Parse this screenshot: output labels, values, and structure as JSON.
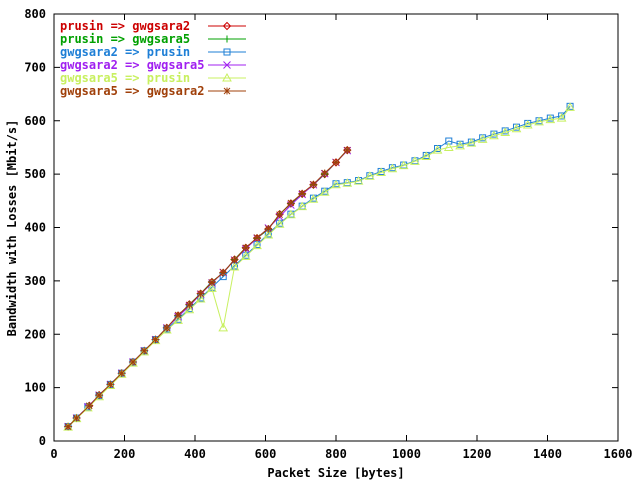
{
  "chart_data": {
    "type": "line",
    "title": "",
    "xlabel": "Packet Size [bytes]",
    "ylabel": "Bandwidth with Losses [Mbit/s]",
    "xlim": [
      0,
      1600
    ],
    "ylim": [
      0,
      800
    ],
    "xticks": [
      0,
      200,
      400,
      600,
      800,
      1000,
      1200,
      1400,
      1600
    ],
    "yticks": [
      0,
      100,
      200,
      300,
      400,
      500,
      600,
      700,
      800
    ],
    "grid": false,
    "legend_position": "top-left",
    "series": [
      {
        "name": "prusin => gwgsara2",
        "color": "#cc0000",
        "marker": "diamond",
        "x": [
          40,
          64,
          100,
          128,
          160,
          192,
          224,
          256,
          288,
          320,
          352,
          384,
          416,
          448,
          480,
          512,
          544,
          576,
          608,
          640,
          672,
          704,
          736,
          768,
          800,
          832
        ],
        "y": [
          27,
          43,
          66,
          86,
          106,
          127,
          148,
          169,
          190,
          212,
          235,
          256,
          276,
          298,
          315,
          340,
          362,
          380,
          397,
          425,
          445,
          463,
          480,
          500,
          522,
          545
        ]
      },
      {
        "name": "prusin => gwgsara5",
        "color": "#00a000",
        "marker": "plus",
        "x": [
          40,
          64,
          100,
          128,
          160,
          192,
          224,
          256,
          288,
          320,
          352,
          384,
          416,
          448,
          480,
          512,
          544,
          576,
          608,
          640,
          672,
          704,
          736,
          768,
          800,
          832
        ],
        "y": [
          27,
          43,
          66,
          86,
          106,
          127,
          148,
          169,
          190,
          212,
          235,
          256,
          276,
          298,
          315,
          340,
          362,
          380,
          397,
          425,
          445,
          463,
          480,
          500,
          522,
          545
        ]
      },
      {
        "name": "gwgsara2 => prusin",
        "color": "#1e7fd6",
        "marker": "square",
        "x": [
          40,
          64,
          96,
          128,
          160,
          192,
          224,
          256,
          288,
          320,
          352,
          384,
          416,
          448,
          480,
          512,
          544,
          576,
          608,
          640,
          672,
          704,
          736,
          768,
          800,
          832,
          864,
          896,
          928,
          960,
          992,
          1024,
          1056,
          1088,
          1120,
          1152,
          1184,
          1216,
          1248,
          1280,
          1312,
          1344,
          1376,
          1408,
          1440,
          1464
        ],
        "y": [
          27,
          43,
          64,
          85,
          106,
          127,
          148,
          169,
          190,
          210,
          228,
          248,
          268,
          288,
          308,
          328,
          348,
          368,
          388,
          408,
          425,
          440,
          455,
          468,
          482,
          484,
          488,
          497,
          505,
          512,
          517,
          525,
          535,
          548,
          562,
          556,
          560,
          568,
          575,
          581,
          588,
          595,
          600,
          605,
          609,
          627
        ]
      },
      {
        "name": "gwgsara2 => gwgsara5",
        "color": "#a020f0",
        "marker": "x",
        "x": [
          40,
          64,
          96,
          128,
          160,
          192,
          224,
          256,
          288,
          320,
          352,
          384,
          416,
          448,
          480,
          512,
          544,
          576,
          608,
          640,
          672,
          704,
          736,
          768,
          800,
          832
        ],
        "y": [
          27,
          43,
          64,
          86,
          106,
          127,
          148,
          169,
          190,
          212,
          233,
          253,
          275,
          296,
          316,
          339,
          360,
          380,
          399,
          420,
          442,
          462,
          480,
          501,
          522,
          544
        ]
      },
      {
        "name": "gwgsara5 => prusin",
        "color": "#c8f060",
        "marker": "triangle",
        "x": [
          40,
          64,
          96,
          128,
          160,
          192,
          224,
          256,
          288,
          320,
          352,
          384,
          416,
          448,
          480,
          512,
          544,
          576,
          608,
          640,
          672,
          704,
          736,
          768,
          800,
          832,
          864,
          896,
          928,
          960,
          992,
          1024,
          1056,
          1088,
          1120,
          1152,
          1184,
          1216,
          1248,
          1280,
          1312,
          1344,
          1376,
          1408,
          1440,
          1464
        ],
        "y": [
          26,
          42,
          62,
          83,
          104,
          125,
          146,
          167,
          188,
          208,
          226,
          246,
          266,
          286,
          212,
          326,
          346,
          366,
          386,
          406,
          424,
          439,
          453,
          466,
          480,
          483,
          487,
          496,
          503,
          510,
          516,
          524,
          533,
          545,
          550,
          553,
          558,
          565,
          572,
          578,
          585,
          592,
          598,
          602,
          605,
          625
        ]
      },
      {
        "name": "gwgsara5 => gwgsara2",
        "color": "#a0400a",
        "marker": "star",
        "x": [
          40,
          64,
          100,
          128,
          160,
          192,
          224,
          256,
          288,
          320,
          352,
          384,
          416,
          448,
          480,
          512,
          544,
          576,
          608,
          640,
          672,
          704,
          736,
          768,
          800,
          832
        ],
        "y": [
          27,
          43,
          66,
          86,
          106,
          127,
          148,
          169,
          190,
          212,
          236,
          255,
          276,
          297,
          316,
          339,
          362,
          381,
          398,
          424,
          446,
          464,
          481,
          502,
          522,
          545
        ]
      }
    ]
  }
}
